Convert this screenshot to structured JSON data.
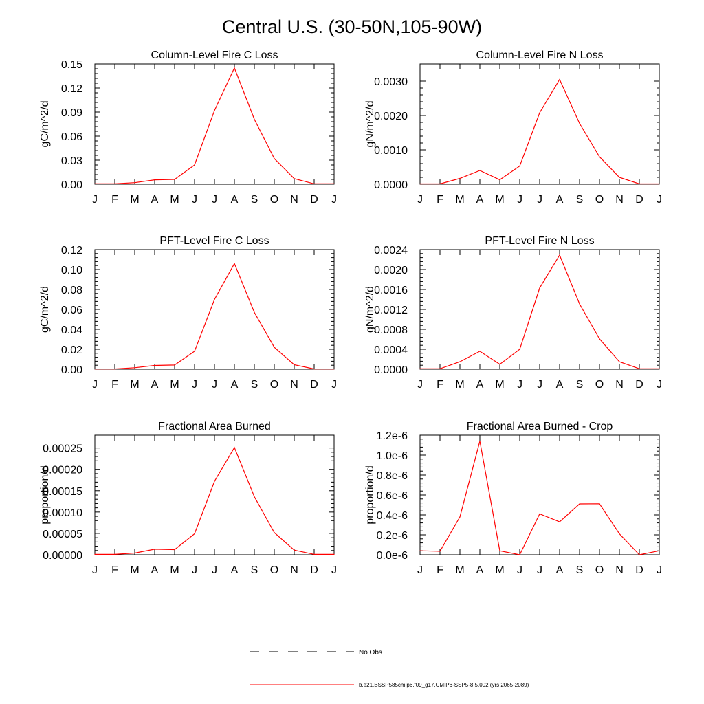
{
  "page_title": "Central U.S. (30-50N,105-90W)",
  "colors": {
    "model_line": "#ff0000",
    "axis": "#000000",
    "obs_line": "#000000"
  },
  "legend": {
    "obs_label": "No Obs",
    "model_label": "b.e21.BSSP585cmip6.f09_g17.CMIP6-SSP5-8.5.002 (yrs 2065-2089)"
  },
  "chart_data": [
    {
      "type": "line",
      "title": "Column-Level Fire C Loss",
      "ylabel": "gC/m^2/d",
      "categories": [
        "J",
        "F",
        "M",
        "A",
        "M",
        "J",
        "J",
        "A",
        "S",
        "O",
        "N",
        "D",
        "J"
      ],
      "ylim": [
        0,
        0.15
      ],
      "yticks": [
        "0.00",
        "0.03",
        "0.06",
        "0.09",
        "0.12",
        "0.15"
      ],
      "series": [
        {
          "values": [
            0.0005,
            0.0005,
            0.002,
            0.0055,
            0.006,
            0.024,
            0.092,
            0.145,
            0.081,
            0.032,
            0.007,
            0.0005,
            0.0005
          ]
        }
      ]
    },
    {
      "type": "line",
      "title": "Column-Level Fire N Loss",
      "ylabel": "gN/m^2/d",
      "categories": [
        "J",
        "F",
        "M",
        "A",
        "M",
        "J",
        "J",
        "A",
        "S",
        "O",
        "N",
        "D",
        "J"
      ],
      "ylim": [
        0,
        0.0035
      ],
      "yticks": [
        "0.0000",
        "0.0010",
        "0.0020",
        "0.0030"
      ],
      "series": [
        {
          "values": [
            1e-05,
            1e-05,
            0.00017,
            0.0004,
            0.00013,
            0.00053,
            0.00208,
            0.00305,
            0.00177,
            0.0008,
            0.0002,
            1e-05,
            1e-05
          ]
        }
      ]
    },
    {
      "type": "line",
      "title": "PFT-Level Fire C Loss",
      "ylabel": "gC/m^2/d",
      "categories": [
        "J",
        "F",
        "M",
        "A",
        "M",
        "J",
        "J",
        "A",
        "S",
        "O",
        "N",
        "D",
        "J"
      ],
      "ylim": [
        0,
        0.12
      ],
      "yticks": [
        "0.00",
        "0.02",
        "0.04",
        "0.06",
        "0.08",
        "0.10",
        "0.12"
      ],
      "series": [
        {
          "values": [
            0.0003,
            0.0003,
            0.0015,
            0.0038,
            0.0042,
            0.018,
            0.07,
            0.106,
            0.057,
            0.022,
            0.0045,
            0.0003,
            0.0003
          ]
        }
      ]
    },
    {
      "type": "line",
      "title": "PFT-Level Fire N Loss",
      "ylabel": "gN/m^2/d",
      "categories": [
        "J",
        "F",
        "M",
        "A",
        "M",
        "J",
        "J",
        "A",
        "S",
        "O",
        "N",
        "D",
        "J"
      ],
      "ylim": [
        0,
        0.0024
      ],
      "yticks": [
        "0.0000",
        "0.0004",
        "0.0008",
        "0.0012",
        "0.0016",
        "0.0020",
        "0.0024"
      ],
      "series": [
        {
          "values": [
            1e-05,
            1e-05,
            0.00015,
            0.00036,
            0.0001,
            0.0004,
            0.00163,
            0.00229,
            0.00131,
            0.00061,
            0.00015,
            1e-05,
            1e-05
          ]
        }
      ]
    },
    {
      "type": "line",
      "title": "Fractional Area Burned",
      "ylabel": "proportion/d",
      "categories": [
        "J",
        "F",
        "M",
        "A",
        "M",
        "J",
        "J",
        "A",
        "S",
        "O",
        "N",
        "D",
        "J"
      ],
      "ylim": [
        0,
        0.00028
      ],
      "yticks": [
        "0.00000",
        "0.00005",
        "0.00010",
        "0.00015",
        "0.00020",
        "0.00025"
      ],
      "series": [
        {
          "values": [
            1e-06,
            1e-06,
            4e-06,
            1.3e-05,
            1.2e-05,
            4.9e-05,
            0.000172,
            0.000251,
            0.000136,
            5.2e-05,
            1.1e-05,
            1e-06,
            1e-06
          ]
        }
      ]
    },
    {
      "type": "line",
      "title": "Fractional Area Burned - Crop",
      "ylabel": "proportion/d",
      "categories": [
        "J",
        "F",
        "M",
        "A",
        "M",
        "J",
        "J",
        "A",
        "S",
        "O",
        "N",
        "D",
        "J"
      ],
      "ylim": [
        0,
        1.2e-06
      ],
      "yticks": [
        "0.0e-6",
        "0.2e-6",
        "0.4e-6",
        "0.6e-6",
        "0.8e-6",
        "1.0e-6",
        "1.2e-6"
      ],
      "series": [
        {
          "values": [
            4e-08,
            3.5e-08,
            3.8e-07,
            1.14e-06,
            4e-08,
            0.0,
            4.1e-07,
            3.3e-07,
            5.1e-07,
            5.12e-07,
            2.1e-07,
            0.0,
            4e-08
          ]
        }
      ]
    }
  ]
}
